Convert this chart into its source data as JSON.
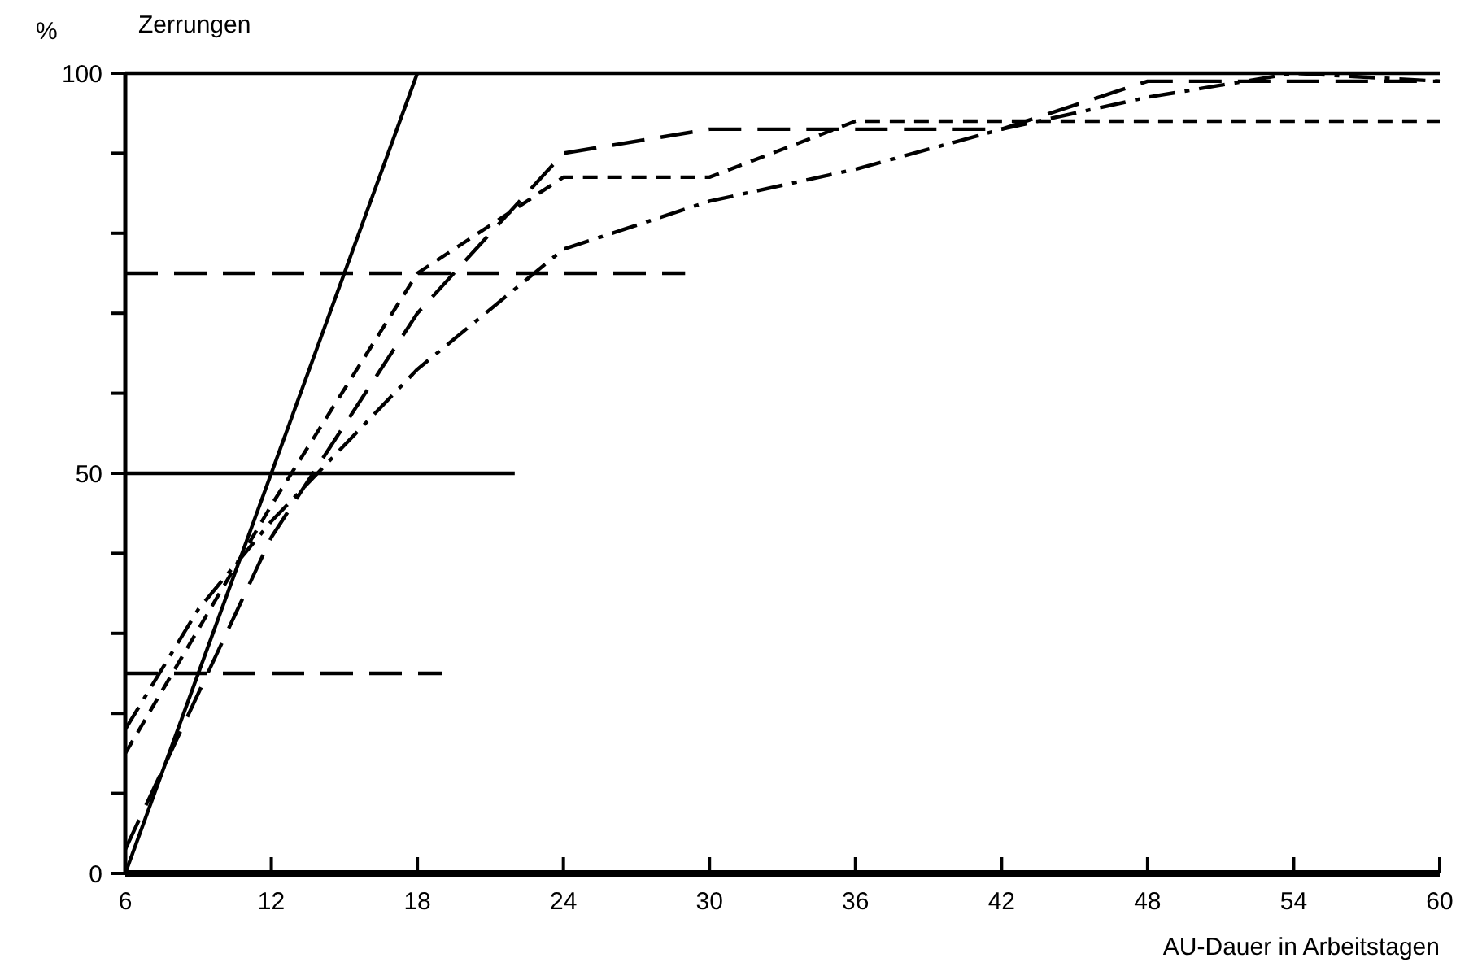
{
  "chart_data": {
    "type": "line",
    "title": "Zerrungen",
    "ylabel": "%",
    "xlabel": "AU-Dauer in Arbeitstagen",
    "xlim": [
      6,
      60
    ],
    "xticks": [
      6,
      12,
      18,
      24,
      30,
      36,
      42,
      48,
      54,
      60
    ],
    "ylim": [
      0,
      100
    ],
    "yticks": [
      0,
      {
        "value": 10,
        "label": null
      },
      {
        "value": 20,
        "label": null
      },
      {
        "value": 30,
        "label": null
      },
      {
        "value": 40,
        "label": null
      },
      50,
      {
        "value": 60,
        "label": null
      },
      {
        "value": 70,
        "label": null
      },
      {
        "value": 80,
        "label": null
      },
      {
        "value": 90,
        "label": null
      },
      100
    ],
    "marker": "none",
    "series": [
      {
        "color": "#000000",
        "line_style": "solid",
        "x": [
          6,
          60
        ],
        "values": [
          100,
          100
        ]
      },
      {
        "color": "#000000",
        "line_style": "dashed",
        "x": [
          6,
          29
        ],
        "values": [
          75,
          75
        ]
      },
      {
        "color": "#000000",
        "line_style": "solid",
        "x": [
          6,
          22
        ],
        "values": [
          50,
          50
        ]
      },
      {
        "color": "#000000",
        "line_style": "dashed",
        "x": [
          6,
          19
        ],
        "values": [
          25,
          25
        ]
      },
      {
        "color": "#000000",
        "line_style": "solid",
        "x": [
          6,
          18
        ],
        "values": [
          0,
          100
        ]
      },
      {
        "color": "#000000",
        "line_style": "dashed",
        "x": [
          6,
          12,
          18,
          24,
          30,
          36,
          42,
          48,
          54,
          60
        ],
        "values": [
          3,
          42,
          70,
          90,
          93,
          93,
          93,
          99,
          99,
          99
        ]
      },
      {
        "color": "#000000",
        "line_style": "dotted",
        "x": [
          6,
          12,
          18,
          24,
          30,
          36,
          42,
          48,
          54,
          60
        ],
        "values": [
          15,
          46,
          75,
          87,
          87,
          94,
          94,
          94,
          94,
          94
        ]
      },
      {
        "color": "#000000",
        "line_style": "dashdot",
        "x": [
          6,
          9,
          12,
          18,
          24,
          30,
          36,
          42,
          48,
          54,
          60
        ],
        "values": [
          18,
          33,
          44,
          63,
          78,
          84,
          88,
          93,
          97,
          100,
          99
        ]
      }
    ]
  }
}
